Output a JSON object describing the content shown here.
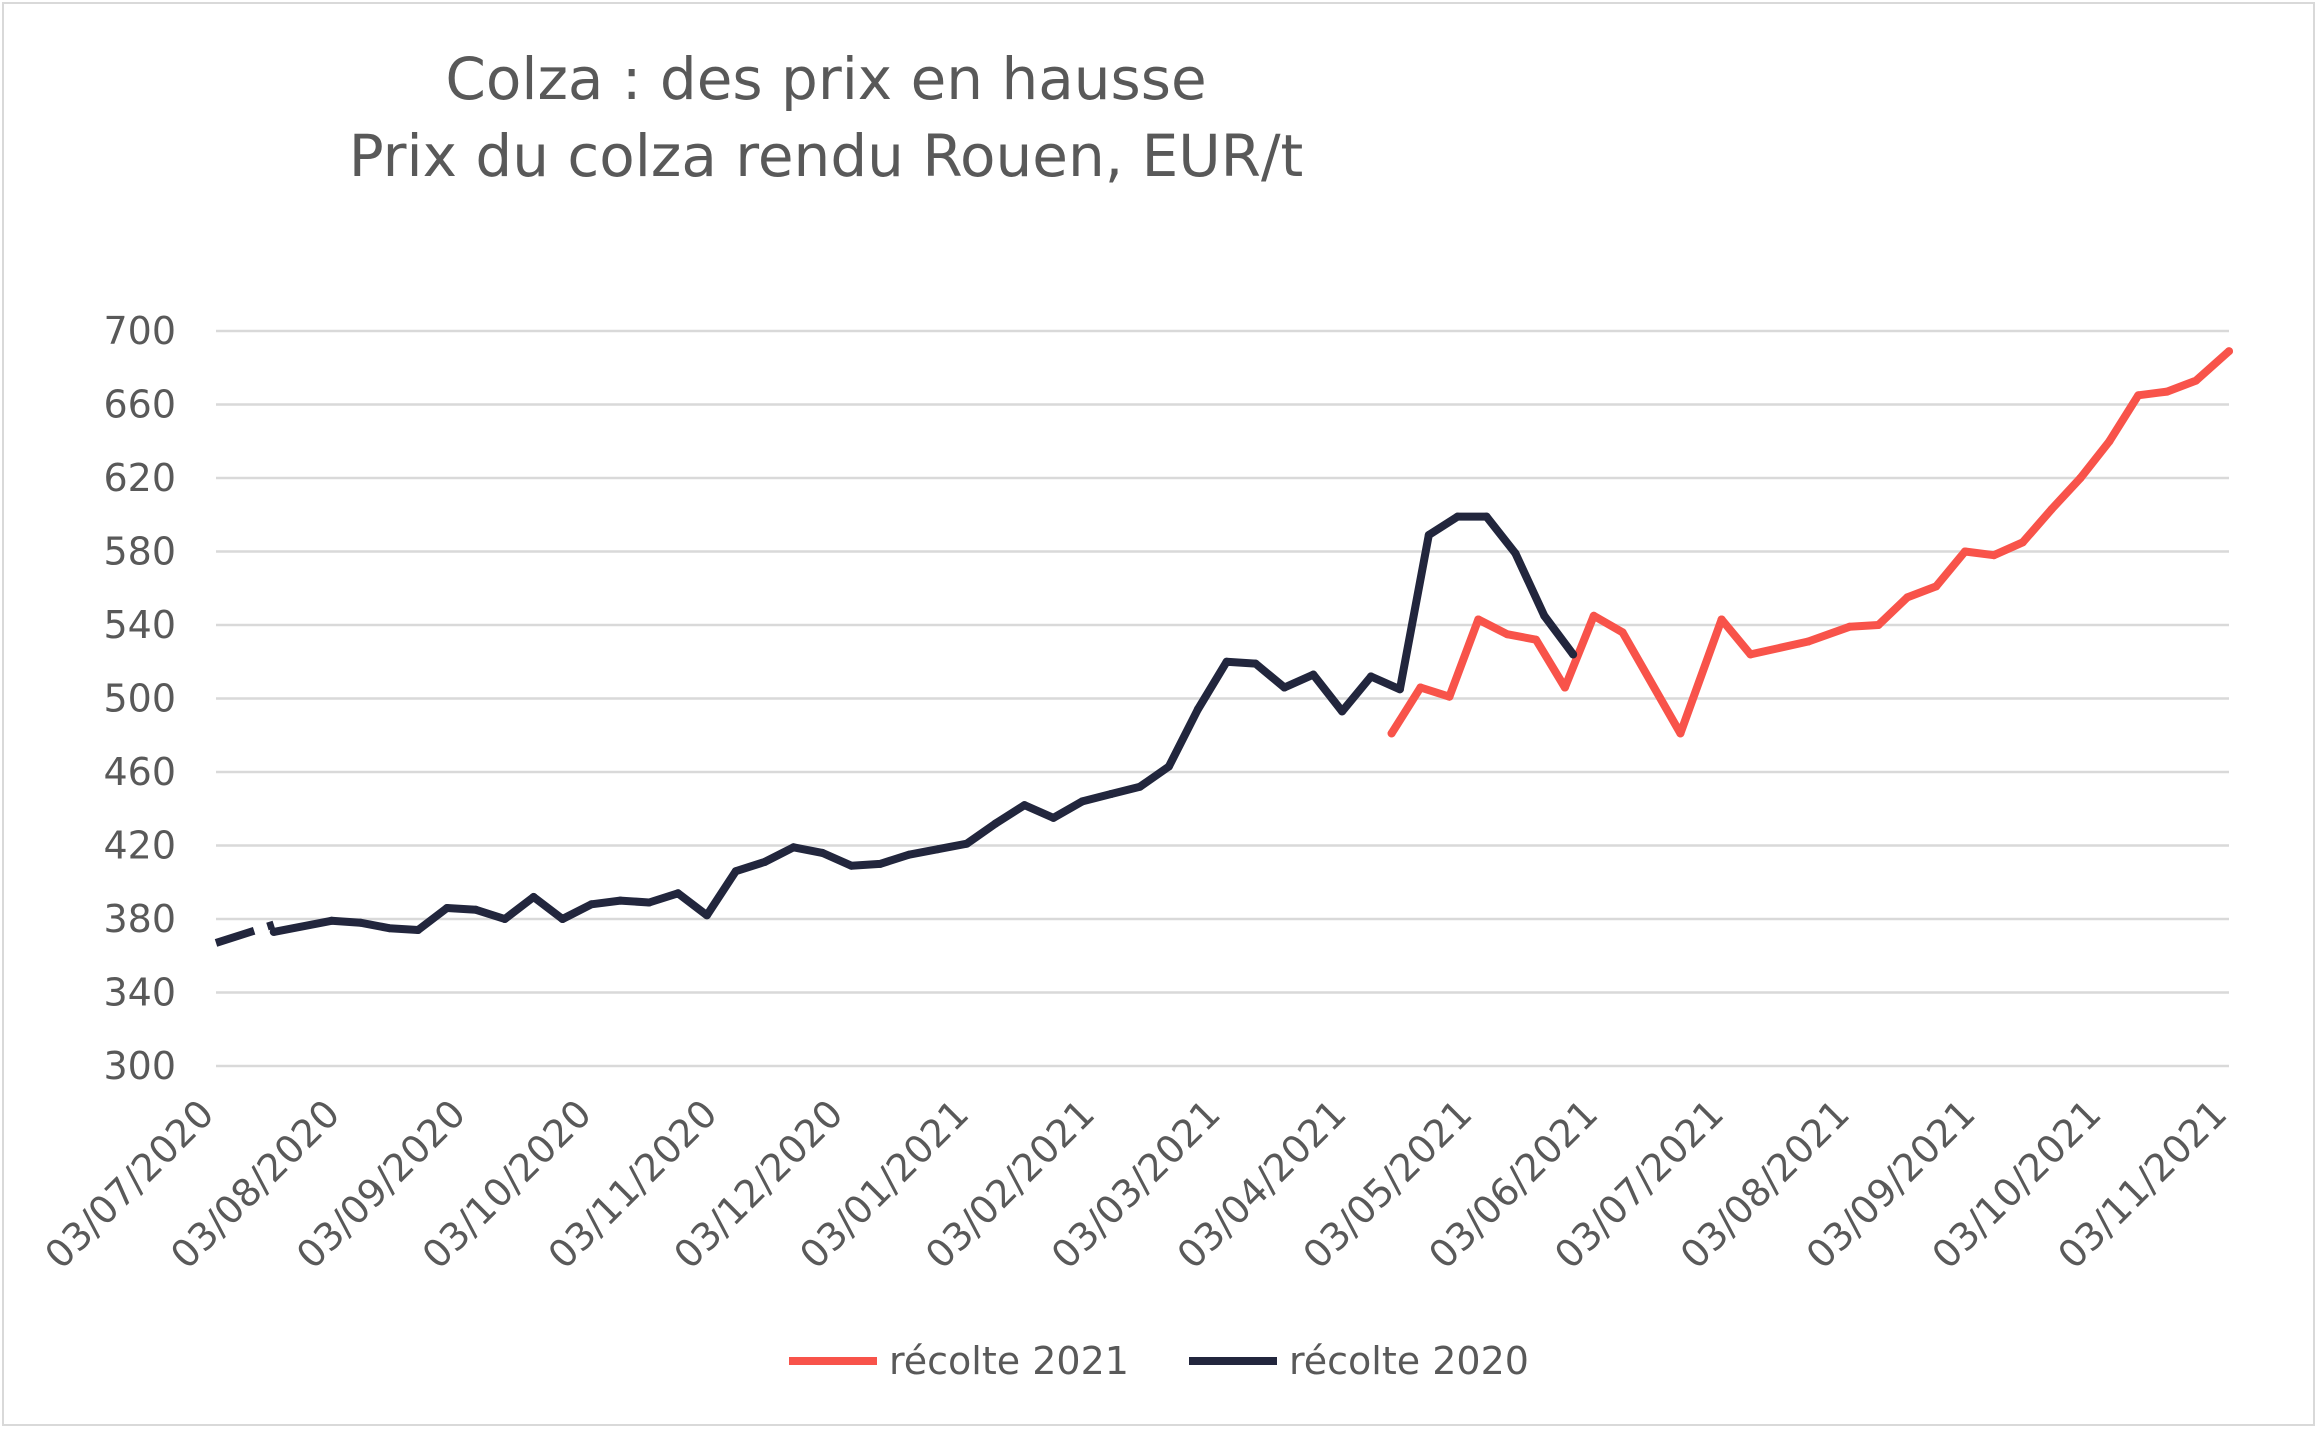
{
  "chart_data": {
    "type": "line",
    "title": "Colza : des prix en hausse",
    "subtitle": "Prix du colza rendu Rouen, EUR/t",
    "ylim": [
      300,
      700
    ],
    "yticks": [
      300,
      340,
      380,
      420,
      460,
      500,
      540,
      580,
      620,
      660,
      700
    ],
    "ytick_labels": [
      "300",
      "340",
      "380",
      "420",
      "460",
      "500",
      "540",
      "580",
      "620",
      "660",
      "700"
    ],
    "xlim": [
      "2020-07-03",
      "2021-11-03"
    ],
    "xtick_labels": [
      "03/07/2020",
      "03/08/2020",
      "03/09/2020",
      "03/10/2020",
      "03/11/2020",
      "03/12/2020",
      "03/01/2021",
      "03/02/2021",
      "03/03/2021",
      "03/04/2021",
      "03/05/2021",
      "03/06/2021",
      "03/07/2021",
      "03/08/2021",
      "03/09/2021",
      "03/10/2021",
      "03/11/2021"
    ],
    "grid": true,
    "legend_position": "bottom",
    "series": [
      {
        "name": "récolte 2021",
        "color": "#f8534a",
        "x": [
          "2021-04-14",
          "2021-04-21",
          "2021-04-28",
          "2021-05-05",
          "2021-05-12",
          "2021-05-19",
          "2021-05-26",
          "2021-06-02",
          "2021-06-09",
          "2021-06-23",
          "2021-07-03",
          "2021-07-10",
          "2021-07-24",
          "2021-08-03",
          "2021-08-10",
          "2021-08-17",
          "2021-08-24",
          "2021-08-31",
          "2021-09-07",
          "2021-09-14",
          "2021-09-21",
          "2021-09-28",
          "2021-10-05",
          "2021-10-12",
          "2021-10-19",
          "2021-10-26",
          "2021-11-03"
        ],
        "values": [
          481,
          506,
          501,
          543,
          535,
          532,
          506,
          545,
          536,
          481,
          543,
          524,
          531,
          539,
          540,
          555,
          561,
          580,
          578,
          585,
          603,
          620,
          640,
          665,
          667,
          673,
          689
        ]
      },
      {
        "name": "récolte 2020",
        "color": "#22263d",
        "dashed_x": [
          "2020-07-03",
          "2020-07-17"
        ],
        "dashed_values": [
          367,
          377
        ],
        "x": [
          "2020-07-17",
          "2020-07-31",
          "2020-08-07",
          "2020-08-14",
          "2020-08-21",
          "2020-08-28",
          "2020-09-04",
          "2020-09-11",
          "2020-09-18",
          "2020-09-25",
          "2020-10-02",
          "2020-10-09",
          "2020-10-16",
          "2020-10-23",
          "2020-10-30",
          "2020-11-06",
          "2020-11-13",
          "2020-11-20",
          "2020-11-27",
          "2020-12-04",
          "2020-12-11",
          "2020-12-18",
          "2020-12-25",
          "2021-01-01",
          "2021-01-08",
          "2021-01-15",
          "2021-01-22",
          "2021-01-29",
          "2021-02-05",
          "2021-02-12",
          "2021-02-19",
          "2021-02-26",
          "2021-03-05",
          "2021-03-12",
          "2021-03-19",
          "2021-03-26",
          "2021-04-02",
          "2021-04-09",
          "2021-04-16",
          "2021-04-23",
          "2021-04-30",
          "2021-05-07",
          "2021-05-14",
          "2021-05-21",
          "2021-05-28"
        ],
        "values": [
          373,
          379,
          378,
          375,
          374,
          386,
          385,
          380,
          392,
          380,
          388,
          390,
          389,
          394,
          382,
          406,
          411,
          419,
          416,
          409,
          410,
          415,
          418,
          421,
          432,
          442,
          435,
          444,
          448,
          452,
          463,
          494,
          520,
          519,
          506,
          513,
          493,
          512,
          505,
          589,
          599,
          599,
          579,
          545,
          524
        ]
      }
    ]
  }
}
